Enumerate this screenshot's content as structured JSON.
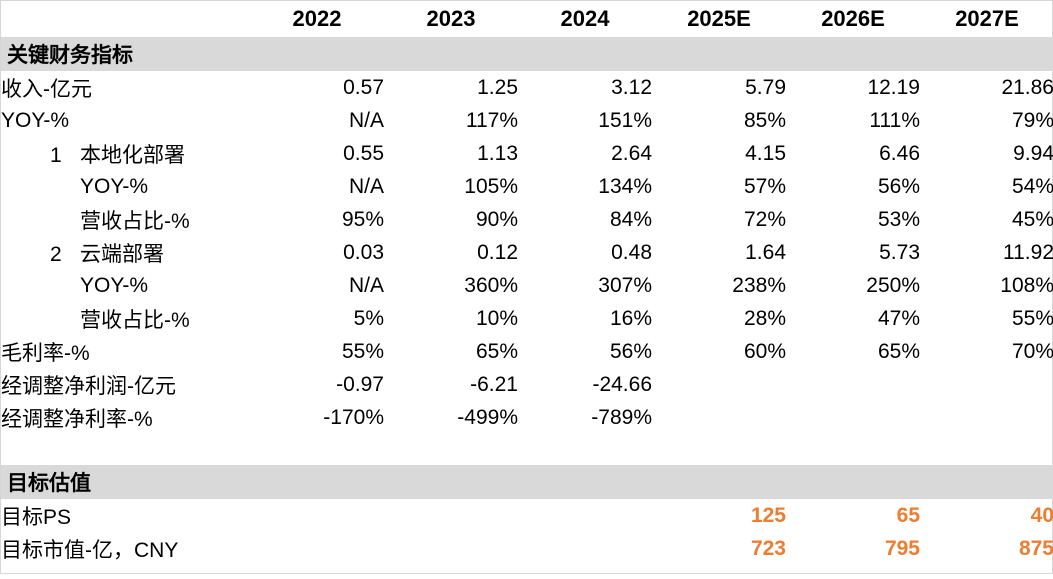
{
  "colors": {
    "section_bg": "#d9d9d9",
    "highlight_orange": "#ed7d31",
    "text": "#000000",
    "border": "#d6d6d6"
  },
  "table": {
    "year_columns": [
      "2022",
      "2023",
      "2024",
      "2025E",
      "2026E",
      "2027E"
    ],
    "rows": [
      {
        "type": "section",
        "label": "关键财务指标"
      },
      {
        "type": "data",
        "label": "收入-亿元",
        "indent": 0,
        "values": [
          "0.57",
          "1.25",
          "3.12",
          "5.79",
          "12.19",
          "21.86"
        ]
      },
      {
        "type": "data",
        "label": "YOY-%",
        "indent": 0,
        "values": [
          "N/A",
          "117%",
          "151%",
          "85%",
          "111%",
          "79%"
        ]
      },
      {
        "type": "data",
        "label": "本地化部署",
        "num": "1",
        "indent": 1,
        "values": [
          "0.55",
          "1.13",
          "2.64",
          "4.15",
          "6.46",
          "9.94"
        ]
      },
      {
        "type": "data",
        "label": "YOY-%",
        "indent": 1,
        "values": [
          "N/A",
          "105%",
          "134%",
          "57%",
          "56%",
          "54%"
        ]
      },
      {
        "type": "data",
        "label": "营收占比-%",
        "indent": 1,
        "values": [
          "95%",
          "90%",
          "84%",
          "72%",
          "53%",
          "45%"
        ]
      },
      {
        "type": "data",
        "label": "云端部署",
        "num": "2",
        "indent": 1,
        "values": [
          "0.03",
          "0.12",
          "0.48",
          "1.64",
          "5.73",
          "11.92"
        ]
      },
      {
        "type": "data",
        "label": "YOY-%",
        "indent": 1,
        "values": [
          "N/A",
          "360%",
          "307%",
          "238%",
          "250%",
          "108%"
        ]
      },
      {
        "type": "data",
        "label": "营收占比-%",
        "indent": 1,
        "values": [
          "5%",
          "10%",
          "16%",
          "28%",
          "47%",
          "55%"
        ]
      },
      {
        "type": "data",
        "label": "毛利率-%",
        "indent": 0,
        "values": [
          "55%",
          "65%",
          "56%",
          "60%",
          "65%",
          "70%"
        ]
      },
      {
        "type": "data",
        "label": "经调整净利润-亿元",
        "indent": 0,
        "values": [
          "-0.97",
          "-6.21",
          "-24.66",
          "",
          "",
          ""
        ]
      },
      {
        "type": "data",
        "label": "经调整净利率-%",
        "indent": 0,
        "values": [
          "-170%",
          "-499%",
          "-789%",
          "",
          "",
          ""
        ]
      },
      {
        "type": "spacer"
      },
      {
        "type": "section",
        "label": "目标估值"
      },
      {
        "type": "data",
        "label": "目标PS",
        "indent": 0,
        "highlight": true,
        "values": [
          "",
          "",
          "",
          "125",
          "65",
          "40"
        ]
      },
      {
        "type": "data",
        "label": "目标市值-亿，CNY",
        "indent": 0,
        "highlight": true,
        "values": [
          "",
          "",
          "",
          "723",
          "795",
          "875"
        ]
      }
    ]
  }
}
